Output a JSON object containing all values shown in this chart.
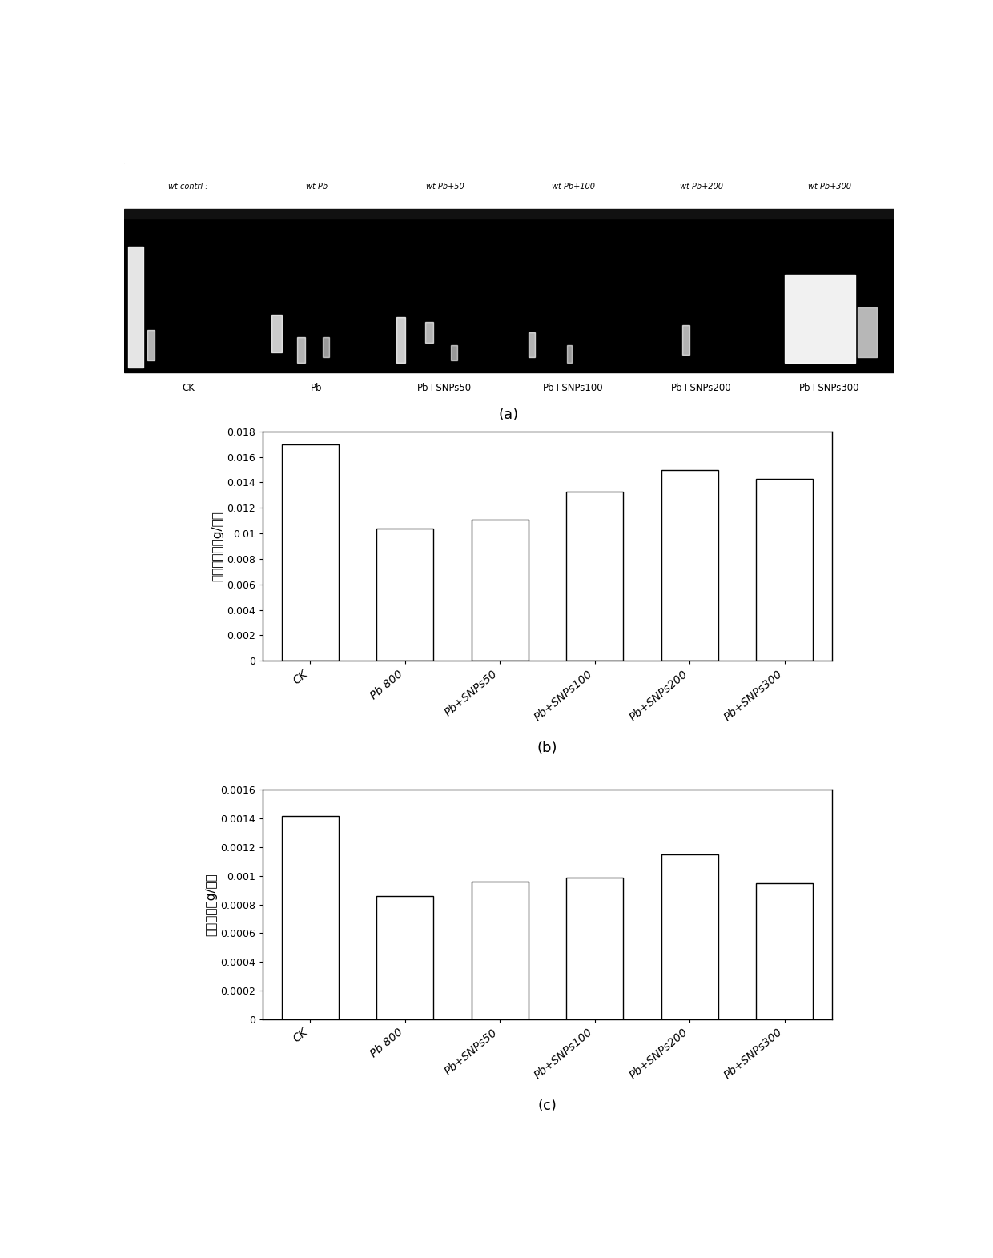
{
  "panel_a": {
    "labels_bottom": [
      "CK",
      "Pb",
      "Pb+SNPs50",
      "Pb+SNPs100",
      "Pb+SNPs200",
      "Pb+SNPs300"
    ],
    "caption": "(a)"
  },
  "panel_b": {
    "categories": [
      "CK",
      "Pb 800",
      "Pb+SNPs50",
      "Pb+SNPs100",
      "Pb+SNPs200",
      "Pb+SNPs300"
    ],
    "values": [
      0.017,
      0.0104,
      0.0111,
      0.0133,
      0.015,
      0.0143
    ],
    "ylabel": "地上部干重（g/株）",
    "ylim": [
      0,
      0.018
    ],
    "yticks": [
      0,
      0.002,
      0.004,
      0.006,
      0.008,
      0.01,
      0.012,
      0.014,
      0.016,
      0.018
    ],
    "caption": "(b)",
    "bar_color": "#ffffff",
    "bar_edgecolor": "#000000"
  },
  "panel_c": {
    "categories": [
      "CK",
      "Pb 800",
      "Pb+SNPs50",
      "Pb+SNPs100",
      "Pb+SNPs200",
      "Pb+SNPs300"
    ],
    "values": [
      0.00142,
      0.00086,
      0.00096,
      0.00099,
      0.00115,
      0.00095
    ],
    "ylabel": "根系干重（g/株）",
    "ylim": [
      0,
      0.0016
    ],
    "yticks": [
      0,
      0.0002,
      0.0004,
      0.0006,
      0.0008,
      0.001,
      0.0012,
      0.0014,
      0.0016
    ],
    "caption": "(c)",
    "bar_color": "#ffffff",
    "bar_edgecolor": "#000000"
  },
  "figure_bg": "#ffffff",
  "tick_fontsize": 9,
  "ylabel_fontsize": 11,
  "caption_fontsize": 13,
  "xlabel_rotation": 40,
  "xlabel_fontsize": 10
}
